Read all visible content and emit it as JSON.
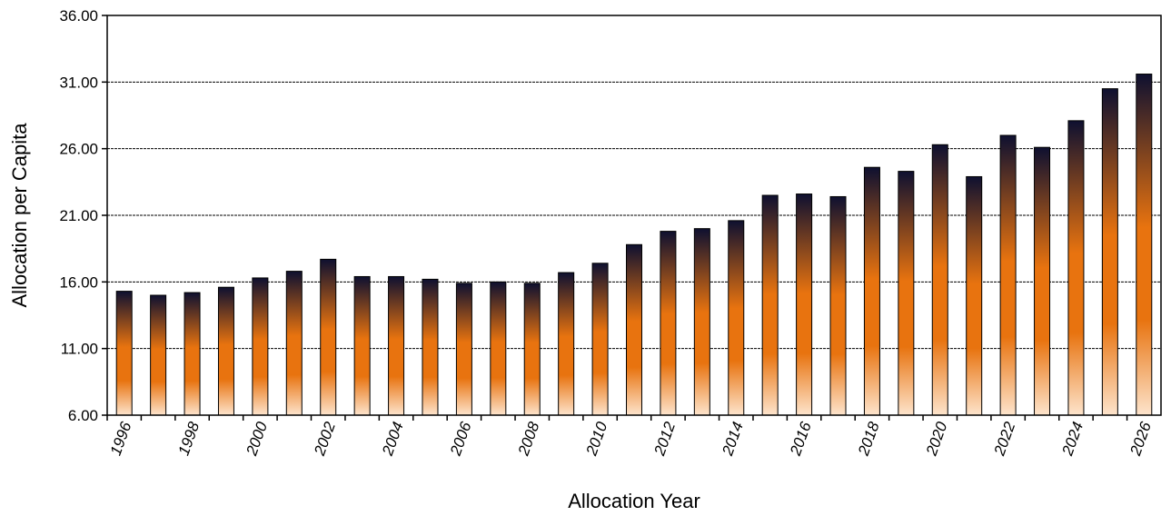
{
  "chart_data": {
    "type": "bar",
    "title": "",
    "xlabel": "Allocation Year",
    "ylabel": "Allocation per Capita",
    "ylim": [
      6,
      36
    ],
    "yticks": [
      "6.00",
      "11.00",
      "16.00",
      "21.00",
      "26.00",
      "31.00",
      "36.00"
    ],
    "grid": "horizontal dashed at major ticks",
    "legend": "none",
    "categories": [
      "1996",
      "1997",
      "1998",
      "1999",
      "2000",
      "2001",
      "2002",
      "2003",
      "2004",
      "2005",
      "2006",
      "2007",
      "2008",
      "2009",
      "2010",
      "2011",
      "2012",
      "2013",
      "2014",
      "2015",
      "2016",
      "2017",
      "2018",
      "2019",
      "2020",
      "2021",
      "2022",
      "2023",
      "2024",
      "2025",
      "2026"
    ],
    "shown_category_labels": [
      "1996",
      "1998",
      "2000",
      "2002",
      "2004",
      "2006",
      "2008",
      "2010",
      "2012",
      "2014",
      "2016",
      "2018",
      "2020",
      "2022",
      "2024",
      "2026"
    ],
    "values": [
      15.3,
      15.0,
      15.2,
      15.6,
      16.3,
      16.8,
      17.7,
      16.4,
      16.4,
      16.2,
      15.9,
      16.0,
      15.9,
      16.7,
      17.4,
      18.8,
      19.8,
      20.0,
      20.6,
      22.5,
      22.6,
      22.4,
      24.6,
      24.3,
      26.3,
      23.9,
      27.0,
      26.1,
      28.1,
      30.5,
      31.6
    ],
    "bar_gradient": {
      "top": "#0e1030",
      "middle": "#e8730f",
      "bottom": "#fde4cc"
    },
    "bar_outline": "#000000"
  }
}
